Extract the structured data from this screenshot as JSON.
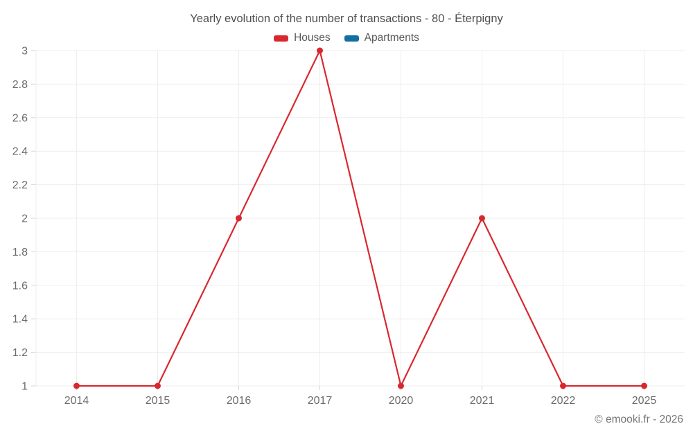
{
  "title": "Yearly evolution of the number of transactions - 80 - Éterpigny",
  "legend": [
    {
      "label": "Houses",
      "color": "#d8282f"
    },
    {
      "label": "Apartments",
      "color": "#1270a0"
    }
  ],
  "footer": {
    "copyright": "© emooki.fr - 2026"
  },
  "chart_data": {
    "type": "line",
    "title": "Yearly evolution of the number of transactions - 80 - Éterpigny",
    "categories": [
      "2014",
      "2015",
      "2016",
      "2017",
      "2020",
      "2021",
      "2022",
      "2025"
    ],
    "series": [
      {
        "name": "Houses",
        "color": "#d8282f",
        "values": [
          1,
          1,
          2,
          3,
          1,
          2,
          1,
          1
        ]
      },
      {
        "name": "Apartments",
        "color": "#1270a0",
        "values": []
      }
    ],
    "xlabel": "",
    "ylabel": "",
    "ylim": [
      1,
      3
    ],
    "yticks": [
      1,
      1.2,
      1.4,
      1.6,
      1.8,
      2,
      2.2,
      2.4,
      2.6,
      2.8,
      3
    ],
    "grid": true,
    "legend_position": "top",
    "marker": "circle"
  },
  "colors": {
    "grid": "#ededed",
    "tick": "#d6d6d6",
    "axis_text": "#6b6b6b"
  }
}
